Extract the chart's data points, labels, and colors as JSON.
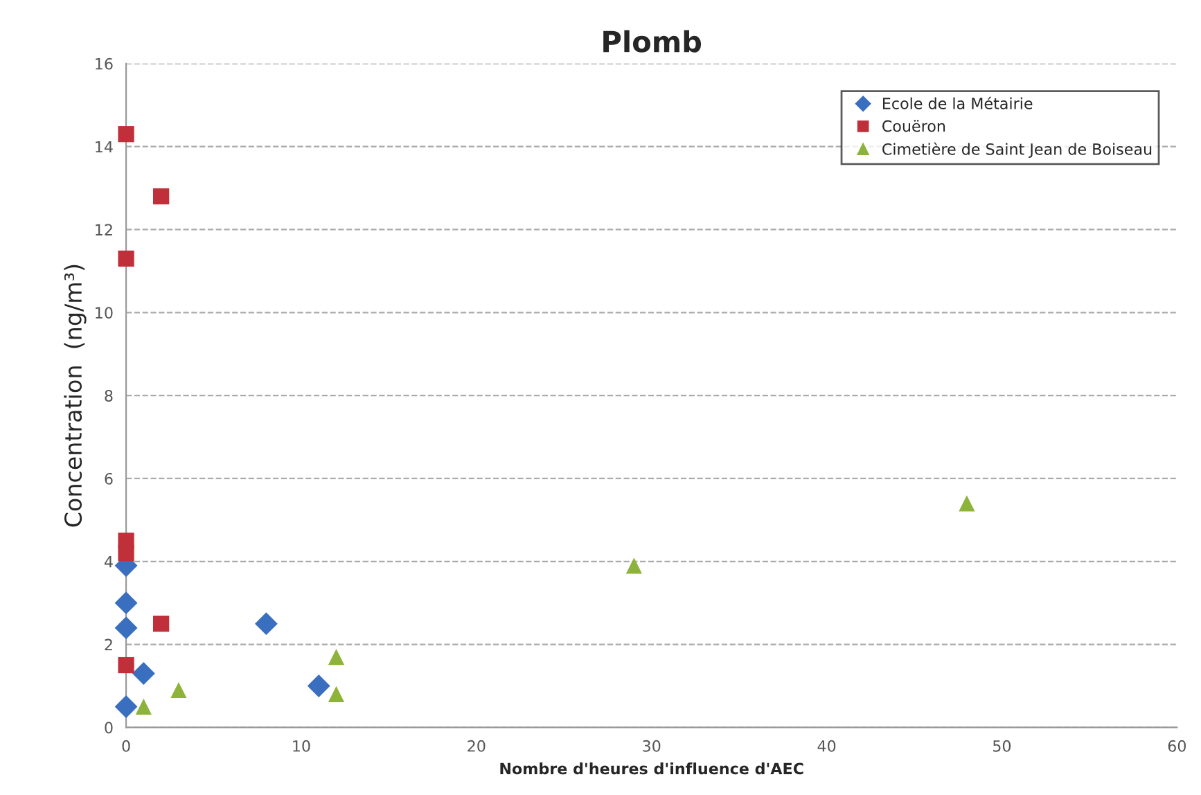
{
  "chart_data": {
    "type": "scatter",
    "title": "Plomb",
    "xlabel": "Nombre d'heures d'influence d'AEC",
    "ylabel": "Concentration  (ng/m³)",
    "xlim": [
      0,
      60
    ],
    "xticks": [
      0,
      10,
      20,
      30,
      40,
      50,
      60
    ],
    "ylim": [
      0,
      16
    ],
    "yticks": [
      0,
      2,
      4,
      6,
      8,
      10,
      12,
      14,
      16
    ],
    "grid": "y",
    "legend": "top right",
    "series": [
      {
        "name": "Ecole de la Métairie",
        "color": "#3a6fc0",
        "marker": "diamond",
        "x": [
          0,
          0,
          0,
          0,
          1,
          8,
          11
        ],
        "values": [
          0.5,
          2.4,
          3.0,
          3.9,
          1.3,
          2.5,
          1.0
        ]
      },
      {
        "name": "Couëron",
        "color": "#c0303a",
        "marker": "square",
        "x": [
          0,
          0,
          2,
          0,
          0,
          2,
          0
        ],
        "values": [
          14.3,
          11.3,
          12.8,
          4.5,
          4.2,
          2.5,
          1.5
        ]
      },
      {
        "name": "Cimetière de Saint Jean de Boiseau",
        "color": "#8db33a",
        "marker": "triangle",
        "x": [
          1,
          3,
          12,
          12,
          29,
          48
        ],
        "values": [
          0.5,
          0.9,
          1.7,
          0.8,
          3.9,
          5.4
        ]
      }
    ]
  }
}
